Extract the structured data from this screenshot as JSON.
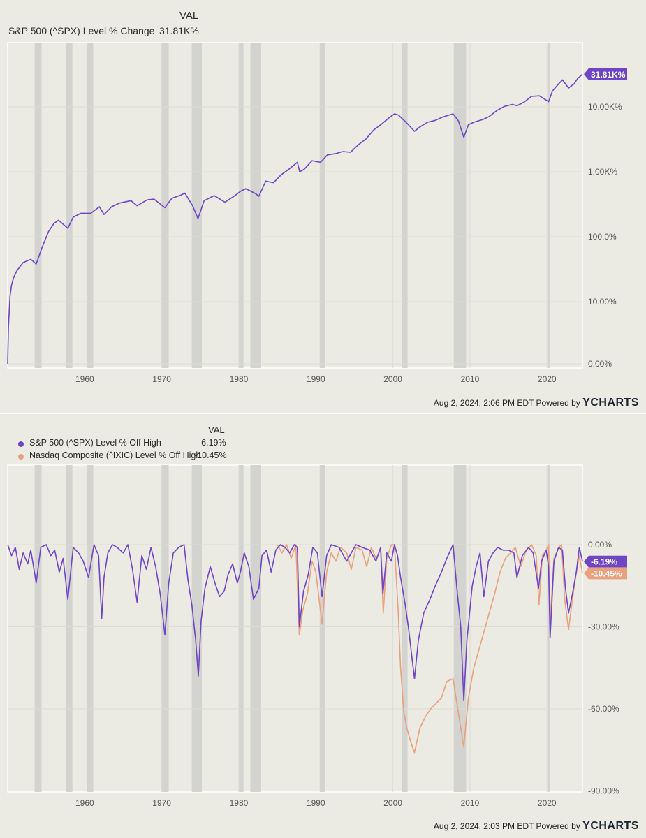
{
  "colors": {
    "background": "#ebebe3",
    "recession": "#d3d3cf",
    "grid": "#dcdcd4",
    "spx": "#6e45c4",
    "nasdaq": "#e9a07c"
  },
  "top_panel": {
    "val_header": "VAL",
    "title": "S&P 500 (^SPX) Level % Change",
    "title_value": "31.81K%",
    "footer_text": "Aug 2, 2024, 2:06 PM EDT Powered by",
    "brand_y": "Y",
    "brand_rest": "CHARTS"
  },
  "bottom_panel": {
    "val_header": "VAL",
    "footer_text": "Aug 2, 2024, 2:03 PM EDT Powered by",
    "brand_y": "Y",
    "brand_rest": "CHARTS"
  },
  "chart_data": [
    {
      "type": "line",
      "title": "S&P 500 (^SPX) Level % Change",
      "y_scale": "log",
      "xlim": [
        1950,
        2024.6
      ],
      "y_ticks": [
        {
          "label": "0.00%",
          "value": 0
        },
        {
          "label": "10.00%",
          "value": 10
        },
        {
          "label": "100.0%",
          "value": 100
        },
        {
          "label": "1.00K%",
          "value": 1000
        },
        {
          "label": "10.00K%",
          "value": 10000
        }
      ],
      "x_ticks": [
        "1960",
        "1970",
        "1980",
        "1990",
        "2000",
        "2010",
        "2020"
      ],
      "grid": true,
      "series": [
        {
          "name": "S&P 500 (^SPX) Level % Change",
          "end_label": "31.81K%",
          "x": [
            1950.0,
            1950.1,
            1950.3,
            1950.5,
            1950.8,
            1951.2,
            1952.0,
            1953.0,
            1953.7,
            1954.5,
            1955.3,
            1956.0,
            1956.6,
            1957.8,
            1958.5,
            1959.5,
            1960.8,
            1961.9,
            1962.5,
            1963.5,
            1964.5,
            1966.0,
            1966.8,
            1968.1,
            1969.0,
            1970.4,
            1971.3,
            1972.5,
            1973.0,
            1974.0,
            1974.7,
            1975.5,
            1976.8,
            1978.2,
            1979.5,
            1980.2,
            1980.9,
            1982.2,
            1982.6,
            1983.5,
            1984.5,
            1985.5,
            1986.5,
            1987.6,
            1987.9,
            1988.5,
            1989.5,
            1990.6,
            1991.5,
            1992.5,
            1993.5,
            1994.5,
            1995.5,
            1996.5,
            1997.5,
            1998.5,
            1999.5,
            2000.2,
            2000.7,
            2001.7,
            2002.8,
            2003.5,
            2004.5,
            2005.5,
            2006.5,
            2007.8,
            2008.5,
            2009.2,
            2009.8,
            2010.5,
            2011.7,
            2012.5,
            2013.5,
            2014.5,
            2015.5,
            2016.1,
            2017.0,
            2018.0,
            2019.0,
            2020.2,
            2020.7,
            2021.5,
            2022.0,
            2022.8,
            2023.5,
            2024.0,
            2024.6
          ],
          "y": [
            0,
            6,
            12,
            18,
            24,
            30,
            40,
            45,
            38,
            70,
            120,
            160,
            180,
            135,
            200,
            230,
            230,
            290,
            220,
            290,
            330,
            360,
            300,
            370,
            380,
            280,
            390,
            440,
            470,
            300,
            190,
            360,
            430,
            340,
            430,
            500,
            550,
            460,
            420,
            720,
            680,
            900,
            1100,
            1400,
            1000,
            1100,
            1480,
            1400,
            1820,
            1900,
            2050,
            2000,
            2600,
            3200,
            4400,
            5400,
            6800,
            7800,
            7500,
            5800,
            4200,
            4900,
            5800,
            6200,
            7000,
            7800,
            6100,
            3400,
            5300,
            5800,
            6400,
            7100,
            8800,
            10200,
            10900,
            10400,
            11800,
            14500,
            14800,
            12000,
            17500,
            22500,
            26000,
            19500,
            22500,
            27500,
            31810
          ]
        }
      ],
      "recessions": [
        [
          1953.5,
          1954.4
        ],
        [
          1957.6,
          1958.4
        ],
        [
          1960.3,
          1961.1
        ],
        [
          1969.9,
          1970.9
        ],
        [
          1973.9,
          1975.2
        ],
        [
          1980.0,
          1980.6
        ],
        [
          1981.5,
          1982.9
        ],
        [
          1990.5,
          1991.2
        ],
        [
          2001.2,
          2001.9
        ],
        [
          2007.9,
          2009.5
        ],
        [
          2020.1,
          2020.4
        ]
      ]
    },
    {
      "type": "line",
      "ylim": [
        -90,
        0
      ],
      "y_ticks": [
        {
          "label": "0.00%",
          "value": 0
        },
        {
          "label": "-30.00%",
          "value": -30
        },
        {
          "label": "-60.00%",
          "value": -60
        },
        {
          "label": "-90.00%",
          "value": -90
        }
      ],
      "x_ticks": [
        "1960",
        "1970",
        "1980",
        "1990",
        "2000",
        "2010",
        "2020"
      ],
      "xlim": [
        1950,
        2024.6
      ],
      "grid": true,
      "legend_position": "top-left",
      "series": [
        {
          "name": "S&P 500 (^SPX) Level % Off High",
          "value": "-6.19%",
          "x": [
            1950.0,
            1950.5,
            1951.0,
            1951.5,
            1952.0,
            1952.6,
            1953.0,
            1953.7,
            1954.3,
            1955.0,
            1955.6,
            1956.1,
            1956.7,
            1957.2,
            1957.8,
            1958.5,
            1959.2,
            1959.8,
            1960.5,
            1961.2,
            1961.8,
            1962.2,
            1962.5,
            1963.0,
            1963.6,
            1964.2,
            1965.0,
            1965.6,
            1966.2,
            1966.8,
            1967.4,
            1968.0,
            1968.6,
            1969.2,
            1969.8,
            1970.4,
            1970.9,
            1971.5,
            1972.2,
            1972.9,
            1973.4,
            1973.9,
            1974.4,
            1974.75,
            1975.1,
            1975.6,
            1976.3,
            1976.9,
            1977.5,
            1978.1,
            1978.6,
            1979.2,
            1979.8,
            1980.2,
            1980.7,
            1981.3,
            1981.9,
            1982.6,
            1983.0,
            1983.6,
            1984.2,
            1984.8,
            1985.4,
            1986.0,
            1986.6,
            1987.2,
            1987.6,
            1987.85,
            1988.4,
            1989.0,
            1989.6,
            1990.2,
            1990.8,
            1991.4,
            1992.0,
            1993.0,
            1994.0,
            1994.6,
            1995.2,
            1996.0,
            1997.0,
            1997.8,
            1998.4,
            1998.7,
            1999.2,
            1999.8,
            2000.2,
            2000.6,
            2001.0,
            2001.6,
            2002.0,
            2002.5,
            2002.8,
            2003.3,
            2004.0,
            2004.8,
            2005.5,
            2006.3,
            2007.0,
            2007.8,
            2008.3,
            2008.8,
            2009.2,
            2009.6,
            2010.3,
            2010.8,
            2011.3,
            2011.8,
            2012.4,
            2013.0,
            2013.6,
            2014.3,
            2015.0,
            2015.7,
            2016.1,
            2016.8,
            2017.6,
            2018.2,
            2018.9,
            2019.3,
            2019.9,
            2020.2,
            2020.4,
            2020.9,
            2021.5,
            2022.0,
            2022.4,
            2022.8,
            2023.3,
            2023.8,
            2024.2,
            2024.6
          ],
          "y": [
            0,
            -4,
            -1,
            -9,
            -3,
            -7,
            -2,
            -14,
            -1,
            0,
            -4,
            -2,
            -10,
            -5,
            -20,
            -1,
            -3,
            -6,
            -12,
            0,
            -4,
            -27,
            -12,
            -3,
            0,
            -1,
            -3,
            0,
            -9,
            -21,
            -4,
            -9,
            -1,
            -8,
            -18,
            -33,
            -14,
            -3,
            -1,
            0,
            -13,
            -22,
            -35,
            -48,
            -28,
            -16,
            -8,
            -14,
            -19,
            -17,
            -11,
            -7,
            -14,
            -10,
            -3,
            -8,
            -20,
            -16,
            -4,
            -2,
            -10,
            -2,
            0,
            -1,
            -3,
            0,
            -1,
            -30,
            -17,
            -11,
            -1,
            -3,
            -19,
            -4,
            0,
            -1,
            -6,
            -3,
            0,
            -1,
            -2,
            -6,
            -1,
            -18,
            -3,
            -6,
            0,
            -4,
            -12,
            -22,
            -30,
            -42,
            -49,
            -35,
            -25,
            -20,
            -15,
            -10,
            -5,
            0,
            -16,
            -30,
            -57,
            -35,
            -15,
            -8,
            -3,
            -19,
            -6,
            -3,
            -1,
            -2,
            -2,
            -3,
            -12,
            -4,
            -1,
            -3,
            -16,
            -6,
            -2,
            -8,
            -34,
            -6,
            -1,
            -2,
            -16,
            -25,
            -18,
            -10,
            -1,
            -6.19
          ]
        },
        {
          "name": "Nasdaq Composite (^IXIC) Level % Off High",
          "value": "-10.45%",
          "x": [
            1985.0,
            1985.6,
            1986.2,
            1986.8,
            1987.4,
            1987.85,
            1988.3,
            1988.9,
            1989.5,
            1990.0,
            1990.8,
            1991.4,
            1992.0,
            1992.6,
            1993.2,
            1994.0,
            1994.6,
            1995.2,
            1996.0,
            1996.6,
            1997.2,
            1997.8,
            1998.4,
            1998.75,
            1999.2,
            1999.8,
            2000.2,
            2000.7,
            2001.0,
            2001.4,
            2001.8,
            2002.3,
            2002.8,
            2003.5,
            2004.2,
            2004.9,
            2005.6,
            2006.3,
            2007.0,
            2007.8,
            2008.3,
            2008.8,
            2009.2,
            2009.8,
            2010.5,
            2011.2,
            2011.8,
            2012.5,
            2013.2,
            2013.9,
            2014.6,
            2015.3,
            2015.9,
            2016.6,
            2017.3,
            2018.0,
            2018.6,
            2018.95,
            2019.4,
            2019.9,
            2020.2,
            2020.4,
            2020.9,
            2021.5,
            2021.9,
            2022.3,
            2022.8,
            2023.2,
            2023.7,
            2024.2,
            2024.6
          ],
          "y": [
            0,
            -3,
            0,
            -5,
            0,
            -33,
            -24,
            -18,
            -6,
            -10,
            -29,
            -10,
            -3,
            -6,
            -1,
            -3,
            -9,
            -1,
            -2,
            -8,
            -1,
            -5,
            -2,
            -25,
            -5,
            0,
            0,
            -25,
            -45,
            -61,
            -67,
            -72,
            -76,
            -67,
            -63,
            -60,
            -58,
            -56,
            -50,
            -49,
            -58,
            -67,
            -74,
            -56,
            -45,
            -38,
            -32,
            -25,
            -18,
            -10,
            -5,
            -3,
            -1,
            -8,
            -2,
            0,
            -4,
            -22,
            -4,
            -2,
            0,
            -28,
            -5,
            -1,
            0,
            -20,
            -31,
            -22,
            -12,
            -4,
            -10.45
          ]
        }
      ],
      "recessions": [
        [
          1953.5,
          1954.4
        ],
        [
          1957.6,
          1958.4
        ],
        [
          1960.3,
          1961.1
        ],
        [
          1969.9,
          1970.9
        ],
        [
          1973.9,
          1975.2
        ],
        [
          1980.0,
          1980.6
        ],
        [
          1981.5,
          1982.9
        ],
        [
          1990.5,
          1991.2
        ],
        [
          2001.2,
          2001.9
        ],
        [
          2007.9,
          2009.5
        ],
        [
          2020.1,
          2020.4
        ]
      ]
    }
  ]
}
